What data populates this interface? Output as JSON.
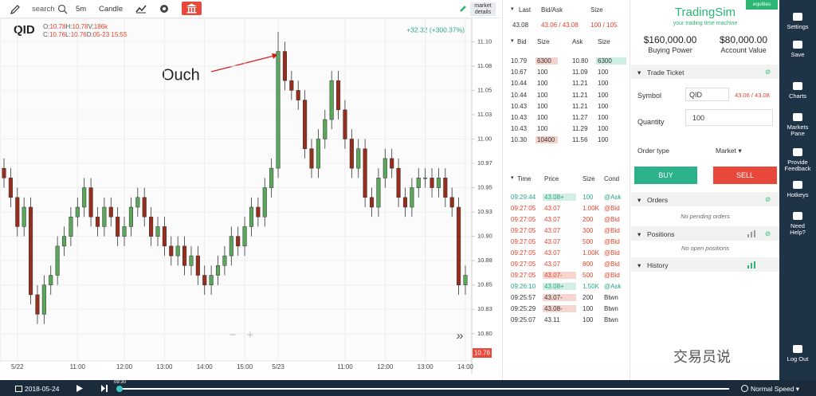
{
  "toolbar": {
    "search": "search",
    "interval": "5m",
    "chart_style": "Candle",
    "market_details": [
      "market",
      "details"
    ]
  },
  "chart_data": {
    "type": "candlestick",
    "symbol": "QID",
    "ohlc_info": [
      [
        {
          "label": "O:",
          "value": "10.78"
        },
        {
          "label": "H:",
          "value": "10.78"
        },
        {
          "label": "V:",
          "value": "186k"
        }
      ],
      [
        {
          "label": "C:",
          "value": "10.76"
        },
        {
          "label": "L:",
          "value": "10.76"
        },
        {
          "label": "D:",
          "value": "05-23 15:55"
        }
      ]
    ],
    "change": "+32.32 (+300.37%)",
    "last_price": 10.76,
    "annotation": "Ouch",
    "categories": [
      null,
      null,
      "5/22",
      null,
      null,
      null,
      null,
      null,
      null,
      null,
      null,
      "11:00",
      null,
      null,
      null,
      null,
      null,
      null,
      "12:00",
      null,
      null,
      null,
      null,
      null,
      "13:00",
      null,
      null,
      null,
      null,
      null,
      "14:00",
      null,
      null,
      null,
      null,
      null,
      "15:00",
      null,
      null,
      null,
      null,
      "5/23",
      null,
      null,
      null,
      null,
      null,
      null,
      null,
      null,
      null,
      "11:00",
      null,
      null,
      null,
      null,
      null,
      "12:00",
      null,
      null,
      null,
      null,
      null,
      "13:00",
      null,
      null,
      null,
      null,
      null,
      "14:00"
    ],
    "open": [
      10.97,
      10.96,
      10.94,
      10.91,
      10.93,
      10.84,
      10.82,
      10.85,
      10.86,
      10.89,
      10.9,
      10.92,
      10.93,
      10.95,
      10.92,
      10.91,
      10.93,
      10.92,
      10.9,
      10.91,
      10.93,
      10.94,
      10.92,
      10.9,
      10.91,
      10.89,
      10.88,
      10.89,
      10.87,
      10.88,
      10.86,
      10.85,
      10.86,
      10.87,
      10.88,
      10.9,
      10.89,
      10.91,
      10.93,
      10.92,
      10.95,
      10.97,
      11.09,
      11.06,
      11.05,
      11.04,
      10.99,
      10.97,
      11.0,
      11.02,
      11.06,
      11.03,
      11.0,
      10.97,
      10.99,
      10.94,
      10.93,
      10.96,
      10.98,
      10.97,
      10.94,
      10.93,
      10.95,
      10.96,
      10.96,
      10.95,
      10.96,
      10.94,
      10.93,
      10.85
    ],
    "high": [
      10.98,
      10.97,
      10.95,
      10.94,
      10.94,
      10.85,
      10.86,
      10.87,
      10.9,
      10.91,
      10.93,
      10.94,
      10.96,
      10.96,
      10.93,
      10.94,
      10.94,
      10.93,
      10.92,
      10.94,
      10.95,
      10.95,
      10.93,
      10.92,
      10.92,
      10.9,
      10.9,
      10.9,
      10.89,
      10.89,
      10.87,
      10.87,
      10.88,
      10.89,
      10.91,
      10.91,
      10.92,
      10.94,
      10.94,
      10.96,
      10.98,
      11.11,
      11.1,
      11.07,
      11.06,
      11.05,
      11.0,
      11.01,
      11.03,
      11.07,
      11.07,
      11.04,
      11.01,
      11.0,
      11.0,
      10.95,
      10.97,
      10.99,
      10.99,
      10.98,
      10.95,
      10.96,
      10.97,
      10.97,
      10.97,
      10.97,
      10.97,
      10.95,
      10.94,
      10.87
    ],
    "low": [
      10.95,
      10.93,
      10.9,
      10.9,
      10.83,
      10.81,
      10.81,
      10.84,
      10.85,
      10.88,
      10.89,
      10.91,
      10.92,
      10.91,
      10.9,
      10.9,
      10.91,
      10.89,
      10.89,
      10.9,
      10.92,
      10.91,
      10.89,
      10.89,
      10.88,
      10.87,
      10.87,
      10.86,
      10.86,
      10.85,
      10.84,
      10.84,
      10.85,
      10.86,
      10.87,
      10.88,
      10.88,
      10.9,
      10.91,
      10.91,
      10.94,
      10.96,
      11.05,
      11.04,
      11.03,
      10.98,
      10.96,
      10.96,
      10.99,
      11.01,
      11.02,
      10.99,
      10.96,
      10.96,
      10.93,
      10.92,
      10.92,
      10.95,
      10.96,
      10.93,
      10.92,
      10.92,
      10.94,
      10.95,
      10.94,
      10.94,
      10.93,
      10.92,
      10.84,
      10.84
    ],
    "close": [
      10.96,
      10.94,
      10.91,
      10.93,
      10.84,
      10.82,
      10.85,
      10.86,
      10.89,
      10.9,
      10.92,
      10.93,
      10.95,
      10.92,
      10.91,
      10.93,
      10.92,
      10.9,
      10.91,
      10.93,
      10.94,
      10.92,
      10.9,
      10.91,
      10.89,
      10.88,
      10.89,
      10.87,
      10.88,
      10.86,
      10.85,
      10.86,
      10.87,
      10.88,
      10.9,
      10.89,
      10.91,
      10.93,
      10.92,
      10.95,
      10.97,
      11.09,
      11.06,
      11.05,
      11.04,
      10.99,
      10.97,
      11.0,
      11.02,
      11.06,
      11.03,
      11.0,
      10.97,
      10.99,
      10.94,
      10.93,
      10.96,
      10.98,
      10.97,
      10.94,
      10.93,
      10.95,
      10.96,
      10.96,
      10.95,
      10.96,
      10.94,
      10.93,
      10.85,
      10.86
    ],
    "up_color": "#5aa65a",
    "down_color": "#962d1d",
    "ylim": [
      10.772,
      11.124
    ],
    "yticks": [
      {
        "value": 10.8,
        "label": "10.80"
      },
      {
        "value": 10.825,
        "label": "10.83"
      },
      {
        "value": 10.85,
        "label": "10.85"
      },
      {
        "value": 10.875,
        "label": "10.88"
      },
      {
        "value": 10.9,
        "label": "10.90"
      },
      {
        "value": 10.925,
        "label": "10.93"
      },
      {
        "value": 10.95,
        "label": "10.95"
      },
      {
        "value": 10.975,
        "label": "10.97"
      },
      {
        "value": 11,
        "label": "11.00"
      },
      {
        "value": 11.025,
        "label": "11.03"
      },
      {
        "value": 11.05,
        "label": "11.05"
      },
      {
        "value": 11.075,
        "label": "11.08"
      },
      {
        "value": 11.1,
        "label": "11.10"
      }
    ],
    "grid": true
  },
  "chart_controls": {
    "zoom_out": "−",
    "zoom_in": "+",
    "scroll": "»"
  },
  "quote": {
    "headers": [
      "Last",
      "Bid/Ask",
      "Size"
    ],
    "last": "43.08",
    "bid_ask": "43.06 / 43.08",
    "size": "100 / 105"
  },
  "order_book": {
    "headers": [
      "Bid",
      "Size",
      "Ask",
      "Size"
    ],
    "rows": [
      {
        "cells": [
          "10.79",
          "6300",
          "10.80",
          "6300"
        ],
        "bid_size_bg": "#f6d2cc",
        "ask_size_bg": "#cdeee2"
      },
      {
        "cells": [
          "10.67",
          "100",
          "11.09",
          "100"
        ]
      },
      {
        "cells": [
          "10.44",
          "100",
          "11.21",
          "100"
        ]
      },
      {
        "cells": [
          "10.44",
          "100",
          "11.21",
          "100"
        ]
      },
      {
        "cells": [
          "10.43",
          "100",
          "11.21",
          "100"
        ]
      },
      {
        "cells": [
          "10.43",
          "100",
          "11.27",
          "100"
        ]
      },
      {
        "cells": [
          "10.43",
          "100",
          "11.29",
          "100"
        ]
      },
      {
        "cells": [
          "10.30",
          "10400",
          "11.56",
          "100"
        ],
        "bid_size_bg": "#f6d2cc"
      }
    ]
  },
  "time_sales": {
    "headers": [
      "Time",
      "Price",
      "Size",
      "Cond"
    ],
    "rows": [
      {
        "cells": [
          "09:29:44",
          "43.08+",
          "100",
          "@Ask"
        ],
        "color": "#2aa58a",
        "price_bg": "#d3efe6"
      },
      {
        "cells": [
          "09:27:05",
          "43.07",
          "1.00K",
          "@Bid"
        ],
        "color": "#e0452f"
      },
      {
        "cells": [
          "09:27:05",
          "43.07",
          "200",
          "@Bid"
        ],
        "color": "#e0452f"
      },
      {
        "cells": [
          "09:27:05",
          "43.07",
          "300",
          "@Bid"
        ],
        "color": "#e0452f"
      },
      {
        "cells": [
          "09:27:05",
          "43.07",
          "500",
          "@Bid"
        ],
        "color": "#e0452f"
      },
      {
        "cells": [
          "09:27:05",
          "43.07",
          "1.00K",
          "@Bid"
        ],
        "color": "#e0452f"
      },
      {
        "cells": [
          "09:27:05",
          "43.07",
          "800",
          "@Bid"
        ],
        "color": "#e0452f"
      },
      {
        "cells": [
          "09:27:05",
          "43.07-",
          "500",
          "@Bid"
        ],
        "color": "#e0452f",
        "price_bg": "#f8d6d0"
      },
      {
        "cells": [
          "09:26:10",
          "43.08+",
          "1.50K",
          "@Ask"
        ],
        "color": "#2aa58a",
        "price_bg": "#d3efe6"
      },
      {
        "cells": [
          "09:25:57",
          "43.07-",
          "200",
          "Btwn"
        ],
        "color": "#333333",
        "price_bg": "#f8d6d0"
      },
      {
        "cells": [
          "09:25:29",
          "43.08-",
          "100",
          "Btwn"
        ],
        "color": "#333333",
        "price_bg": "#f8d6d0"
      },
      {
        "cells": [
          "09:25:07",
          "43.11",
          "100",
          "Btwn"
        ],
        "color": "#333333"
      }
    ]
  },
  "account": {
    "brand": "TradingSim",
    "tagline": "your trading time machine",
    "badge": "equities",
    "buying_power": "$160,000.00",
    "buying_power_label": "Buying Power",
    "account_value": "$80,000.00",
    "account_value_label": "Account Value"
  },
  "ticket": {
    "title": "Trade Ticket",
    "symbol_label": "Symbol",
    "symbol": "QID",
    "bid_ask": "43.06 / 43.08",
    "quantity_label": "Quantity",
    "quantity": "100",
    "order_type_label": "Order type",
    "order_type": "Market",
    "buy": "BUY",
    "sell": "SELL"
  },
  "orders": {
    "title": "Orders",
    "empty": "No pending orders"
  },
  "positions": {
    "title": "Positions",
    "empty": "No open positions"
  },
  "history": {
    "title": "History"
  },
  "sidebar": [
    "Settings",
    "Save",
    "Charts",
    [
      "Markets",
      "Pane"
    ],
    [
      "Provide",
      "Feedback"
    ],
    "Hotkeys",
    [
      "Need",
      "Help?"
    ],
    "Log Out"
  ],
  "playback": {
    "date": "2018-05-24",
    "time": "09:30",
    "speed": "Normal Speed"
  },
  "watermark": "交易员说"
}
